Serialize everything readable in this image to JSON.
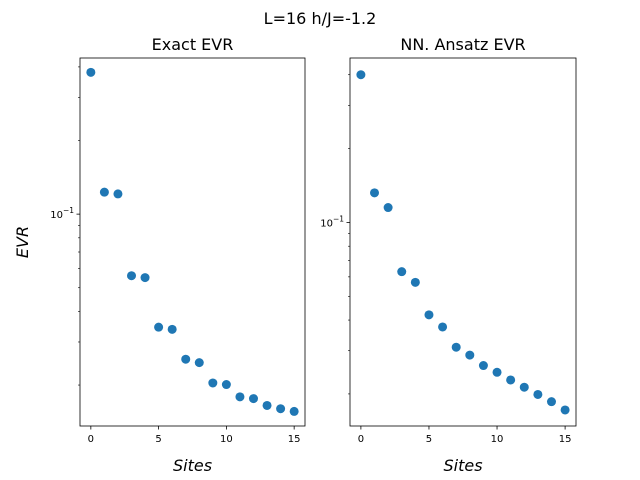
{
  "figure": {
    "suptitle": "L=16 h/J=-1.2"
  },
  "chart_data": [
    {
      "type": "scatter",
      "title": "Exact EVR",
      "xlabel": "Sites",
      "ylabel": "EVR",
      "yscale": "log",
      "grid": false,
      "marker_color": "#1f77b4",
      "xlim": [
        -0.8,
        15.8
      ],
      "ylim": [
        0.0136,
        0.435
      ],
      "xticks": [
        0,
        5,
        10,
        15
      ],
      "yticks": [
        {
          "value": 0.1,
          "label": "10^-1"
        }
      ],
      "x": [
        0,
        1,
        2,
        3,
        4,
        5,
        6,
        7,
        8,
        9,
        10,
        11,
        12,
        13,
        14,
        15
      ],
      "y": [
        0.38,
        0.123,
        0.121,
        0.056,
        0.055,
        0.0345,
        0.0338,
        0.0255,
        0.0247,
        0.0204,
        0.0201,
        0.0179,
        0.0176,
        0.0165,
        0.016,
        0.0156
      ]
    },
    {
      "type": "scatter",
      "title": "NN. Ansatz EVR",
      "xlabel": "Sites",
      "ylabel": "",
      "yscale": "log",
      "grid": false,
      "marker_color": "#1f77b4",
      "xlim": [
        -0.8,
        15.8
      ],
      "ylim": [
        0.0148,
        0.468
      ],
      "xticks": [
        0,
        5,
        10,
        15
      ],
      "yticks": [
        {
          "value": 0.1,
          "label": "10^-1"
        }
      ],
      "x": [
        0,
        1,
        2,
        3,
        4,
        5,
        6,
        7,
        8,
        9,
        10,
        11,
        12,
        13,
        14,
        15
      ],
      "y": [
        0.4,
        0.132,
        0.115,
        0.063,
        0.057,
        0.042,
        0.0375,
        0.031,
        0.0288,
        0.0261,
        0.0245,
        0.0228,
        0.0213,
        0.0199,
        0.0186,
        0.0172
      ]
    }
  ]
}
